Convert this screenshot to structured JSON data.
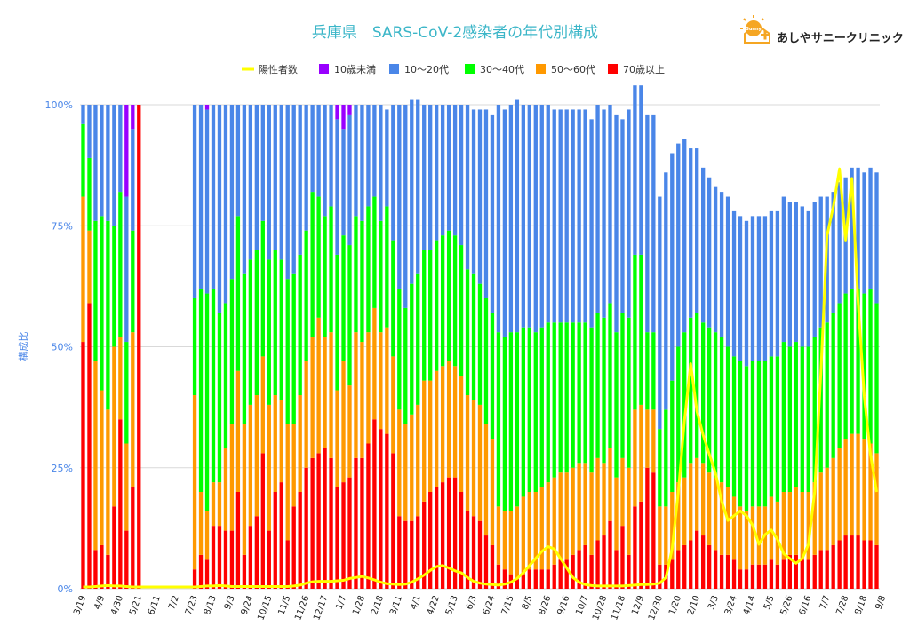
{
  "colors": {
    "under10": "#9900ff",
    "age10_20": "#4a86e8",
    "age30_40": "#00ff00",
    "age50_60": "#ff9900",
    "age70plus": "#ff0000",
    "positives": "#ffff00",
    "title": "#3bb6c8",
    "axis_text": "#4a86e8",
    "logo_sun": "#f5a623",
    "logo_plus": "#f5a623"
  },
  "logo": {
    "icon": "sun-house-icon",
    "badge": "Sunny",
    "text": "あしやサニークリニック"
  },
  "chart_data": {
    "type": "bar",
    "stacked": true,
    "normalized": true,
    "title": "兵庫県　SARS-CoV-2感染者の年代別構成",
    "xlabel": "",
    "ylabel": "構成比",
    "ylim": [
      0,
      1
    ],
    "y_ticks": [
      "0%",
      "25%",
      "50%",
      "75%",
      "100%"
    ],
    "grid": true,
    "legend_position": "top",
    "legend": [
      "陽性者数",
      "10歳未満",
      "10～20代",
      "30～40代",
      "50～60代",
      "70歳以上"
    ],
    "x_tick_labels": [
      "3/19",
      "4/9",
      "4/30",
      "5/21",
      "6/11",
      "7/2",
      "7/23",
      "8/13",
      "9/3",
      "9/24",
      "10/15",
      "11/5",
      "11/26",
      "12/17",
      "1/7",
      "1/28",
      "2/18",
      "3/11",
      "4/1",
      "4/22",
      "5/13",
      "6/3",
      "6/24",
      "7/15",
      "8/5",
      "8/26",
      "9/16",
      "10/7",
      "10/28",
      "11/18",
      "12/9",
      "12/30",
      "1/20",
      "2/10",
      "3/3",
      "3/24",
      "4/14",
      "5/5",
      "5/26",
      "6/16",
      "7/7",
      "7/28",
      "8/18",
      "9/8"
    ],
    "bar_tick_interval": 3,
    "series": [
      {
        "name": "70歳以上",
        "key": "age70plus",
        "values": [
          0.51,
          0.59,
          0.08,
          0.09,
          0.07,
          0.17,
          0.35,
          0.12,
          0.21,
          1.0,
          0,
          0,
          0,
          0,
          0,
          0,
          0,
          0,
          0.04,
          0.07,
          0.06,
          0.13,
          0.13,
          0.12,
          0.12,
          0.2,
          0.07,
          0.13,
          0.15,
          0.28,
          0.12,
          0.2,
          0.22,
          0.1,
          0.17,
          0.2,
          0.25,
          0.27,
          0.28,
          0.29,
          0.27,
          0.21,
          0.22,
          0.23,
          0.27,
          0.27,
          0.3,
          0.35,
          0.33,
          0.32,
          0.28,
          0.15,
          0.14,
          0.14,
          0.15,
          0.18,
          0.2,
          0.21,
          0.22,
          0.23,
          0.23,
          0.2,
          0.16,
          0.15,
          0.14,
          0.11,
          0.09,
          0.05,
          0.04,
          0.03,
          0.02,
          0.03,
          0.04,
          0.04,
          0.04,
          0.04,
          0.05,
          0.06,
          0.06,
          0.07,
          0.08,
          0.09,
          0.07,
          0.1,
          0.11,
          0.14,
          0.08,
          0.13,
          0.07,
          0.17,
          0.18,
          0.25,
          0.24,
          0.05,
          0.05,
          0.06,
          0.08,
          0.09,
          0.1,
          0.12,
          0.11,
          0.09,
          0.08,
          0.07,
          0.07,
          0.06,
          0.04,
          0.04,
          0.05,
          0.05,
          0.05,
          0.06,
          0.05,
          0.06,
          0.07,
          0.07,
          0.06,
          0.06,
          0.07,
          0.08,
          0.08,
          0.09,
          0.1,
          0.11,
          0.11,
          0.11,
          0.1,
          0.1,
          0.09
        ]
      },
      {
        "name": "50～60代",
        "key": "age50_60",
        "values": [
          0.3,
          0.15,
          0.39,
          0.32,
          0.3,
          0.33,
          0.17,
          0.18,
          0.32,
          0,
          0,
          0,
          0,
          0,
          0,
          0,
          0,
          0,
          0.36,
          0.13,
          0.1,
          0.09,
          0.09,
          0.17,
          0.22,
          0.25,
          0.27,
          0.25,
          0.25,
          0.2,
          0.26,
          0.2,
          0.17,
          0.24,
          0.17,
          0.2,
          0.22,
          0.25,
          0.28,
          0.23,
          0.26,
          0.2,
          0.25,
          0.19,
          0.26,
          0.24,
          0.23,
          0.23,
          0.2,
          0.22,
          0.2,
          0.22,
          0.2,
          0.22,
          0.23,
          0.25,
          0.23,
          0.24,
          0.24,
          0.24,
          0.23,
          0.24,
          0.24,
          0.24,
          0.24,
          0.23,
          0.22,
          0.12,
          0.12,
          0.13,
          0.15,
          0.16,
          0.16,
          0.16,
          0.17,
          0.18,
          0.18,
          0.18,
          0.18,
          0.18,
          0.18,
          0.17,
          0.17,
          0.17,
          0.15,
          0.15,
          0.15,
          0.14,
          0.18,
          0.2,
          0.2,
          0.12,
          0.13,
          0.12,
          0.12,
          0.14,
          0.14,
          0.14,
          0.16,
          0.15,
          0.15,
          0.15,
          0.15,
          0.15,
          0.14,
          0.13,
          0.13,
          0.12,
          0.12,
          0.12,
          0.12,
          0.13,
          0.13,
          0.14,
          0.13,
          0.14,
          0.14,
          0.14,
          0.15,
          0.16,
          0.17,
          0.18,
          0.19,
          0.2,
          0.21,
          0.21,
          0.21,
          0.2,
          0.19
        ]
      },
      {
        "name": "30～40代",
        "key": "age30_40",
        "values": [
          0.15,
          0.15,
          0.29,
          0.36,
          0.39,
          0.25,
          0.3,
          0.21,
          0.21,
          0,
          0,
          0,
          0,
          0,
          0,
          0,
          0,
          0,
          0.2,
          0.42,
          0.45,
          0.4,
          0.35,
          0.3,
          0.3,
          0.32,
          0.31,
          0.3,
          0.3,
          0.28,
          0.3,
          0.3,
          0.29,
          0.3,
          0.31,
          0.29,
          0.27,
          0.3,
          0.25,
          0.25,
          0.26,
          0.28,
          0.26,
          0.29,
          0.24,
          0.25,
          0.26,
          0.23,
          0.23,
          0.25,
          0.24,
          0.25,
          0.24,
          0.27,
          0.27,
          0.27,
          0.27,
          0.27,
          0.27,
          0.27,
          0.27,
          0.27,
          0.26,
          0.26,
          0.25,
          0.26,
          0.26,
          0.36,
          0.36,
          0.37,
          0.36,
          0.35,
          0.34,
          0.33,
          0.33,
          0.33,
          0.32,
          0.31,
          0.31,
          0.3,
          0.29,
          0.29,
          0.3,
          0.3,
          0.3,
          0.3,
          0.3,
          0.3,
          0.31,
          0.32,
          0.31,
          0.16,
          0.16,
          0.16,
          0.2,
          0.23,
          0.28,
          0.3,
          0.3,
          0.3,
          0.29,
          0.3,
          0.3,
          0.3,
          0.29,
          0.29,
          0.3,
          0.3,
          0.3,
          0.3,
          0.3,
          0.29,
          0.3,
          0.31,
          0.3,
          0.3,
          0.3,
          0.3,
          0.3,
          0.3,
          0.3,
          0.3,
          0.3,
          0.3,
          0.3,
          0.3,
          0.3,
          0.32,
          0.31
        ]
      },
      {
        "name": "10～20代",
        "key": "age10_20",
        "values": [
          0.04,
          0.11,
          0.24,
          0.23,
          0.24,
          0.25,
          0.18,
          0.3,
          0.21,
          0,
          0,
          0,
          0,
          0,
          0,
          0,
          0,
          0,
          0.4,
          0.38,
          0.38,
          0.38,
          0.43,
          0.41,
          0.36,
          0.23,
          0.35,
          0.32,
          0.3,
          0.24,
          0.32,
          0.3,
          0.32,
          0.36,
          0.35,
          0.31,
          0.26,
          0.18,
          0.19,
          0.23,
          0.21,
          0.28,
          0.22,
          0.27,
          0.23,
          0.24,
          0.21,
          0.19,
          0.24,
          0.2,
          0.28,
          0.38,
          0.42,
          0.38,
          0.36,
          0.3,
          0.3,
          0.28,
          0.27,
          0.26,
          0.27,
          0.29,
          0.34,
          0.34,
          0.36,
          0.39,
          0.41,
          0.47,
          0.47,
          0.47,
          0.48,
          0.46,
          0.46,
          0.47,
          0.46,
          0.45,
          0.44,
          0.44,
          0.44,
          0.44,
          0.44,
          0.44,
          0.43,
          0.43,
          0.43,
          0.41,
          0.45,
          0.4,
          0.43,
          0.35,
          0.35,
          0.45,
          0.45,
          0.48,
          0.49,
          0.47,
          0.42,
          0.4,
          0.35,
          0.34,
          0.32,
          0.31,
          0.3,
          0.3,
          0.31,
          0.3,
          0.3,
          0.3,
          0.3,
          0.3,
          0.3,
          0.3,
          0.3,
          0.3,
          0.3,
          0.29,
          0.29,
          0.28,
          0.28,
          0.27,
          0.26,
          0.25,
          0.25,
          0.24,
          0.25,
          0.25,
          0.25,
          0.25,
          0.27
        ]
      },
      {
        "name": "10歳未満",
        "key": "under10",
        "values": [
          0.0,
          0.0,
          0.0,
          0.0,
          0.0,
          0.0,
          0.0,
          0.19,
          0.05,
          0,
          0,
          0,
          0,
          0,
          0,
          0,
          0,
          0,
          0.0,
          0.0,
          0.01,
          0.0,
          0.0,
          0.0,
          0.0,
          0.0,
          0.0,
          0.0,
          0.0,
          0.0,
          0.0,
          0.0,
          0.0,
          0.0,
          0.0,
          0.0,
          0.0,
          0.0,
          0.0,
          0.0,
          0.0,
          0.03,
          0.05,
          0.02,
          0.0,
          0.0,
          0.0,
          0.0,
          0.0,
          0.0,
          0.0,
          0.0,
          0.0,
          0.0,
          0.0,
          0.0,
          0.0,
          0.0,
          0.0,
          0.0,
          0.0,
          0.0,
          0.0,
          0.0,
          0.0,
          0.0,
          0.0,
          0.0,
          0.0,
          0.0,
          0.0,
          0.0,
          0.0,
          0.0,
          0.0,
          0.0,
          0.0,
          0.0,
          0.0,
          0.0,
          0.0,
          0.0,
          0.0,
          0.0,
          0.0,
          0.0,
          0.0,
          0.0,
          0.0,
          0.0,
          0.0,
          0.0,
          0.0,
          0.0,
          0.0,
          0.0,
          0.0,
          0.0,
          0.0,
          0.0,
          0.0,
          0.0,
          0.0,
          0.0,
          0.0,
          0.0,
          0.0,
          0.0,
          0.0,
          0.0,
          0.0,
          0.0,
          0.0,
          0.0,
          0.0,
          0.0,
          0.0,
          0.0,
          0.0,
          0.0,
          0.0,
          0.0,
          0.0,
          0.0,
          0.0,
          0.0,
          0.0,
          0.0,
          0.0
        ]
      }
    ],
    "positives_relative": [
      0.0,
      0.0,
      0.001,
      0.002,
      0.003,
      0.002,
      0.002,
      0.001,
      0.0,
      0.0,
      0.0,
      0.0,
      0.0,
      0.0,
      0.0,
      0.0,
      0.0,
      0.0,
      0.0,
      0.001,
      0.002,
      0.002,
      0.003,
      0.002,
      0.001,
      0.001,
      0.001,
      0.001,
      0.001,
      0.001,
      0.001,
      0.001,
      0.001,
      0.001,
      0.002,
      0.004,
      0.008,
      0.011,
      0.012,
      0.012,
      0.012,
      0.013,
      0.014,
      0.018,
      0.02,
      0.022,
      0.019,
      0.015,
      0.01,
      0.007,
      0.006,
      0.005,
      0.006,
      0.01,
      0.017,
      0.025,
      0.035,
      0.043,
      0.045,
      0.04,
      0.034,
      0.03,
      0.02,
      0.012,
      0.008,
      0.006,
      0.005,
      0.004,
      0.006,
      0.01,
      0.018,
      0.03,
      0.045,
      0.06,
      0.075,
      0.085,
      0.08,
      0.06,
      0.04,
      0.02,
      0.01,
      0.005,
      0.003,
      0.002,
      0.002,
      0.002,
      0.002,
      0.002,
      0.003,
      0.004,
      0.005,
      0.005,
      0.006,
      0.008,
      0.02,
      0.08,
      0.2,
      0.35,
      0.47,
      0.37,
      0.32,
      0.28,
      0.24,
      0.18,
      0.14,
      0.15,
      0.16,
      0.15,
      0.13,
      0.09,
      0.11,
      0.12,
      0.1,
      0.07,
      0.06,
      0.05,
      0.06,
      0.09,
      0.2,
      0.45,
      0.74,
      0.8,
      0.88,
      0.73,
      0.86,
      0.6,
      0.4,
      0.28,
      0.2
    ]
  }
}
